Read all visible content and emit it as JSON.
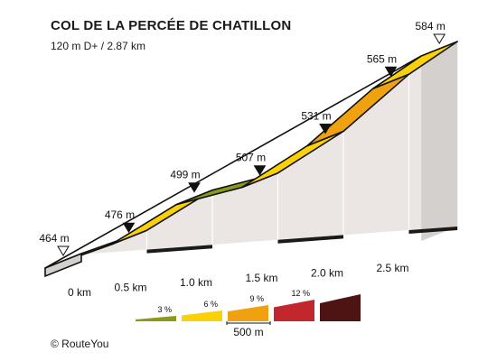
{
  "chart_data": {
    "type": "area",
    "title": "COL DE LA PERCÉE DE CHATILLON",
    "subtitle": "120 m D+ / 2.87 km",
    "credit": "© RouteYou",
    "x_unit": "km",
    "y_unit": "m",
    "points": [
      {
        "km": 0.0,
        "elev": 464,
        "label": "464 m",
        "marker": "open"
      },
      {
        "km": 0.5,
        "elev": 476,
        "label": "476 m",
        "marker": "filled"
      },
      {
        "km": 1.0,
        "elev": 499,
        "label": "499 m",
        "marker": "filled"
      },
      {
        "km": 1.5,
        "elev": 507,
        "label": "507 m",
        "marker": "filled"
      },
      {
        "km": 2.0,
        "elev": 531,
        "label": "531 m",
        "marker": "filled"
      },
      {
        "km": 2.5,
        "elev": 565,
        "label": "565 m",
        "marker": "filled"
      },
      {
        "km": 2.87,
        "elev": 584,
        "label": "584 m",
        "marker": "open"
      }
    ],
    "segments": [
      {
        "from_km": 0.0,
        "to_km": 0.5,
        "grade_class": 3
      },
      {
        "from_km": 0.5,
        "to_km": 1.0,
        "grade_class": 6
      },
      {
        "from_km": 1.0,
        "to_km": 1.5,
        "grade_class": 3
      },
      {
        "from_km": 1.5,
        "to_km": 2.0,
        "grade_class": 6
      },
      {
        "from_km": 2.0,
        "to_km": 2.5,
        "grade_class": 9
      },
      {
        "from_km": 2.5,
        "to_km": 2.87,
        "grade_class": 6
      }
    ],
    "x_ticks": [
      {
        "km": 0.0,
        "label": "0 km"
      },
      {
        "km": 0.5,
        "label": "0.5 km"
      },
      {
        "km": 1.0,
        "label": "1.0 km"
      },
      {
        "km": 1.5,
        "label": "1.5 km"
      },
      {
        "km": 2.0,
        "label": "2.0 km"
      },
      {
        "km": 2.5,
        "label": "2.5 km"
      }
    ],
    "legend": {
      "items": [
        {
          "grade_class": 3,
          "label": "3 %",
          "color": "#8a9a16"
        },
        {
          "grade_class": 6,
          "label": "6 %",
          "color": "#f9d106"
        },
        {
          "grade_class": 9,
          "label": "9 %",
          "color": "#f0a10f"
        },
        {
          "grade_class": 12,
          "label": "12 %",
          "color": "#c1272d"
        },
        {
          "grade_class": 15,
          "label": "",
          "color": "#4e1313"
        }
      ],
      "scale_label": "500 m"
    },
    "colors": {
      "side_wall": "#ebe6e4",
      "front_wall": "#d4d0cd",
      "outline": "#111111"
    }
  }
}
